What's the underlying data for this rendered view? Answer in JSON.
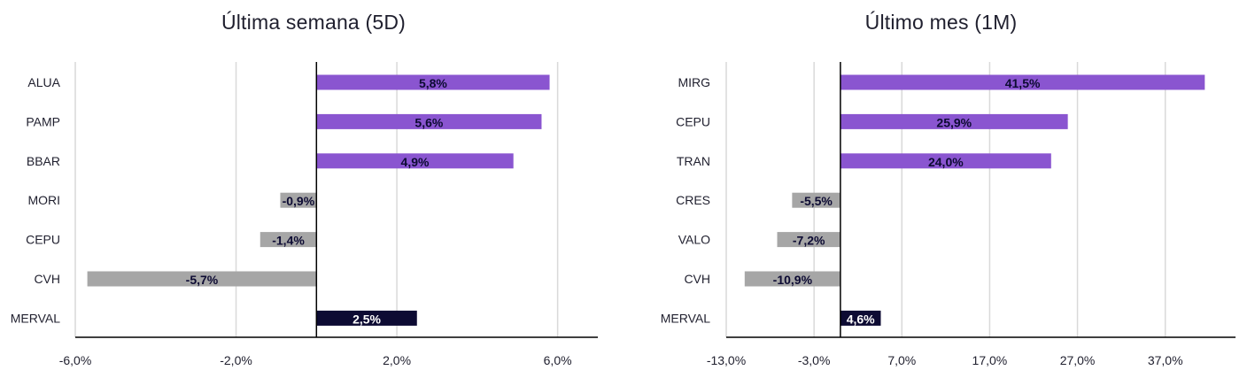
{
  "colors": {
    "positive": "#8a55d0",
    "negative": "#a6a6a6",
    "index": "#0d0b33",
    "grid": "#d9d9d9",
    "axis": "#000000"
  },
  "chart_data": [
    {
      "type": "bar",
      "orientation": "horizontal",
      "title": "Última semana (5D)",
      "categories": [
        "ALUA",
        "PAMP",
        "BBAR",
        "MORI",
        "CEPU",
        "CVH",
        "MERVAL"
      ],
      "values": [
        5.8,
        5.6,
        4.9,
        -0.9,
        -1.4,
        -5.7,
        2.5
      ],
      "labels": [
        "5,8%",
        "5,6%",
        "4,9%",
        "-0,9%",
        "-1,4%",
        "-5,7%",
        "2,5%"
      ],
      "xlim": [
        -6.0,
        7.0
      ],
      "xticks": [
        -6.0,
        -2.0,
        2.0,
        6.0
      ],
      "xtick_labels": [
        "-6,0%",
        "-2,0%",
        "2,0%",
        "6,0%"
      ],
      "grid": true
    },
    {
      "type": "bar",
      "orientation": "horizontal",
      "title": "Último mes (1M)",
      "categories": [
        "MIRG",
        "CEPU",
        "TRAN",
        "CRES",
        "VALO",
        "CVH",
        "MERVAL"
      ],
      "values": [
        41.5,
        25.9,
        24.0,
        -5.5,
        -7.2,
        -10.9,
        4.6
      ],
      "labels": [
        "41,5%",
        "25,9%",
        "24,0%",
        "-5,5%",
        "-7,2%",
        "-10,9%",
        "4,6%"
      ],
      "xlim": [
        -13.0,
        45.0
      ],
      "xticks": [
        -13.0,
        -3.0,
        7.0,
        17.0,
        27.0,
        37.0
      ],
      "xtick_labels": [
        "-13,0%",
        "-3,0%",
        "7,0%",
        "17,0%",
        "27,0%",
        "37,0%"
      ],
      "grid": true
    }
  ]
}
